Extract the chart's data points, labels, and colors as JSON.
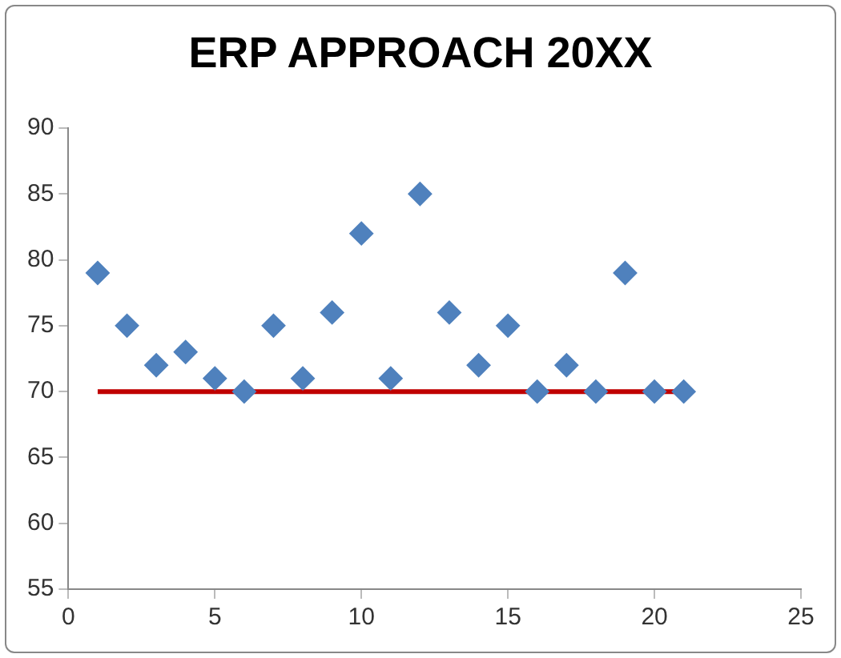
{
  "chart_data": {
    "type": "scatter",
    "title": "ERP APPROACH 20XX",
    "series": [
      {
        "color": "#4f81bd",
        "x": [
          1,
          2,
          3,
          4,
          5,
          6,
          7,
          8,
          9,
          10,
          11,
          12,
          13,
          14,
          15,
          16,
          17,
          18,
          19,
          20,
          21
        ],
        "values": [
          79,
          75,
          72,
          73,
          71,
          70,
          75,
          71,
          76,
          82,
          71,
          85,
          76,
          72,
          75,
          70,
          72,
          70,
          79,
          70,
          70
        ]
      },
      {
        "type": "line",
        "marker": "none",
        "color": "#c00000",
        "x": [
          1,
          21
        ],
        "values": [
          70,
          70
        ]
      }
    ],
    "xlim": [
      0,
      25
    ],
    "xticks": [
      0,
      5,
      10,
      15,
      20,
      25
    ],
    "ylim": [
      55,
      90
    ],
    "yticks": [
      55,
      60,
      65,
      70,
      75,
      80,
      85,
      90
    ],
    "grid": false,
    "legend": false,
    "marker": "diamond"
  }
}
